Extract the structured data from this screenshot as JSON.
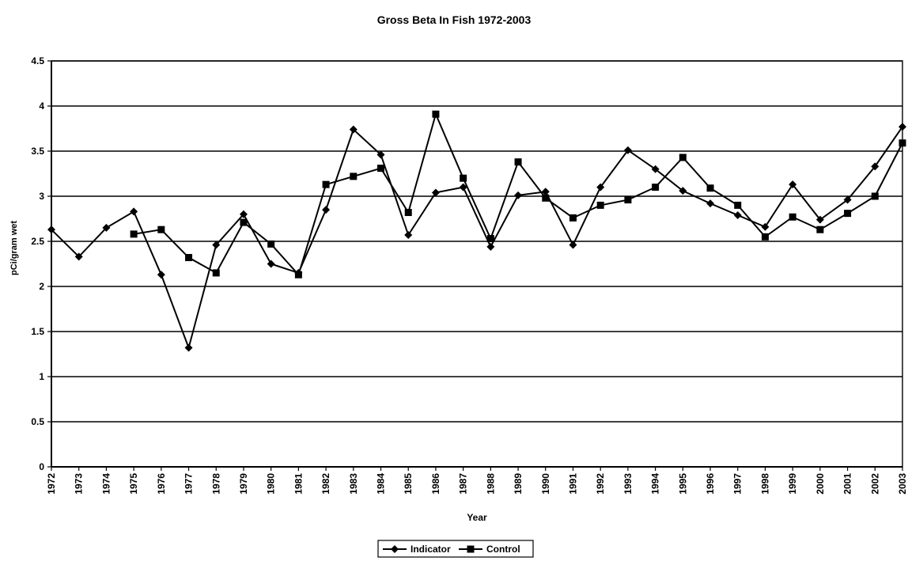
{
  "chart_data": {
    "type": "line",
    "title": "Gross Beta In Fish 1972-2003",
    "xlabel": "Year",
    "ylabel": "pCi/gram wet",
    "ylim": [
      0,
      4.5
    ],
    "yticks": [
      "0",
      "0.5",
      "1",
      "1.5",
      "2",
      "2.5",
      "3",
      "3.5",
      "4",
      "4.5"
    ],
    "grid": true,
    "legend_position": "bottom",
    "categories": [
      "1972",
      "1973",
      "1974",
      "1975",
      "1976",
      "1977",
      "1978",
      "1979",
      "1980",
      "1981",
      "1982",
      "1983",
      "1984",
      "1985",
      "1986",
      "1987",
      "1988",
      "1989",
      "1990",
      "1991",
      "1992",
      "1993",
      "1994",
      "1995",
      "1996",
      "1997",
      "1998",
      "1999",
      "2000",
      "2001",
      "2002",
      "2003"
    ],
    "series": [
      {
        "name": "Indicator",
        "marker": "diamond",
        "color": "#000000",
        "values": [
          2.63,
          2.33,
          2.65,
          2.83,
          2.13,
          1.32,
          2.46,
          2.8,
          2.25,
          2.15,
          2.85,
          3.74,
          3.46,
          2.57,
          3.04,
          3.1,
          2.44,
          3.01,
          3.05,
          2.46,
          3.1,
          3.51,
          3.3,
          3.06,
          2.92,
          2.79,
          2.66,
          3.13,
          2.74,
          2.96,
          3.33,
          3.77
        ]
      },
      {
        "name": "Control",
        "marker": "square",
        "color": "#000000",
        "values": [
          null,
          null,
          null,
          2.58,
          2.63,
          2.32,
          2.15,
          2.71,
          2.47,
          2.13,
          3.13,
          3.22,
          3.31,
          2.82,
          3.91,
          3.2,
          2.53,
          3.38,
          2.98,
          2.76,
          2.9,
          2.96,
          3.1,
          3.43,
          3.09,
          2.9,
          2.55,
          2.77,
          2.63,
          2.81,
          3.0,
          3.59
        ]
      }
    ]
  }
}
